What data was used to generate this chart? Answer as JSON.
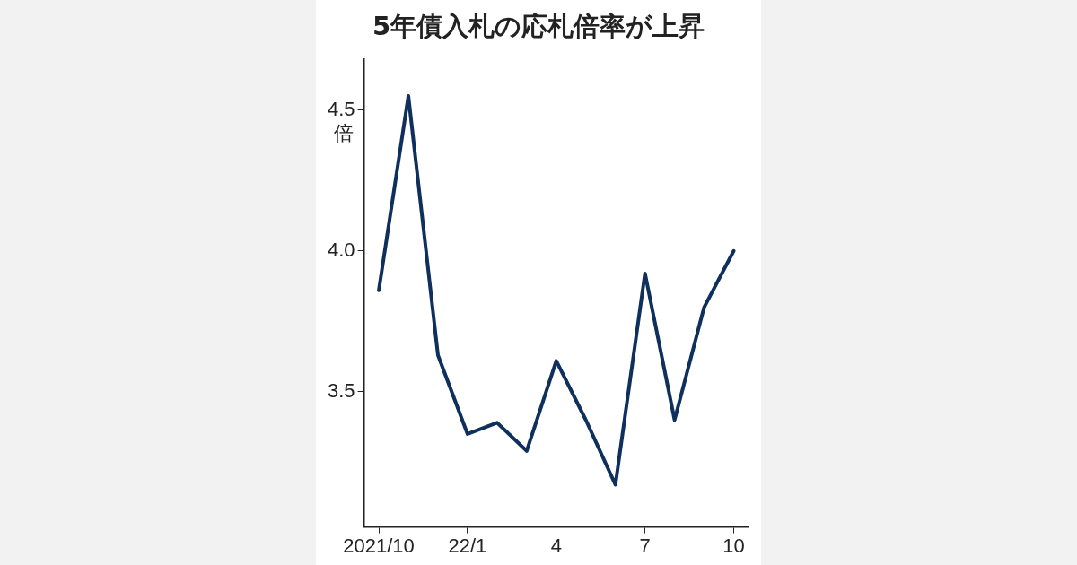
{
  "chart_data": {
    "type": "line",
    "title": "5年債入札の応札倍率が上昇",
    "ylabel": "倍",
    "categories": [
      "2021/10",
      null,
      null,
      "22/1",
      null,
      null,
      "4",
      null,
      null,
      "7",
      null,
      null,
      "10"
    ],
    "series": [
      {
        "color": "#0f2f5c",
        "values": [
          3.86,
          4.55,
          3.63,
          3.35,
          3.39,
          3.29,
          3.61,
          3.4,
          3.17,
          3.92,
          3.4,
          3.8,
          4.0
        ]
      }
    ],
    "ylim": [
      3.02,
      4.68
    ],
    "yticks": [
      3.5,
      {
        "value": 4,
        "label": "4.0"
      },
      4.5
    ],
    "grid": false,
    "legend": false,
    "marker": "none",
    "line_style": "solid"
  }
}
